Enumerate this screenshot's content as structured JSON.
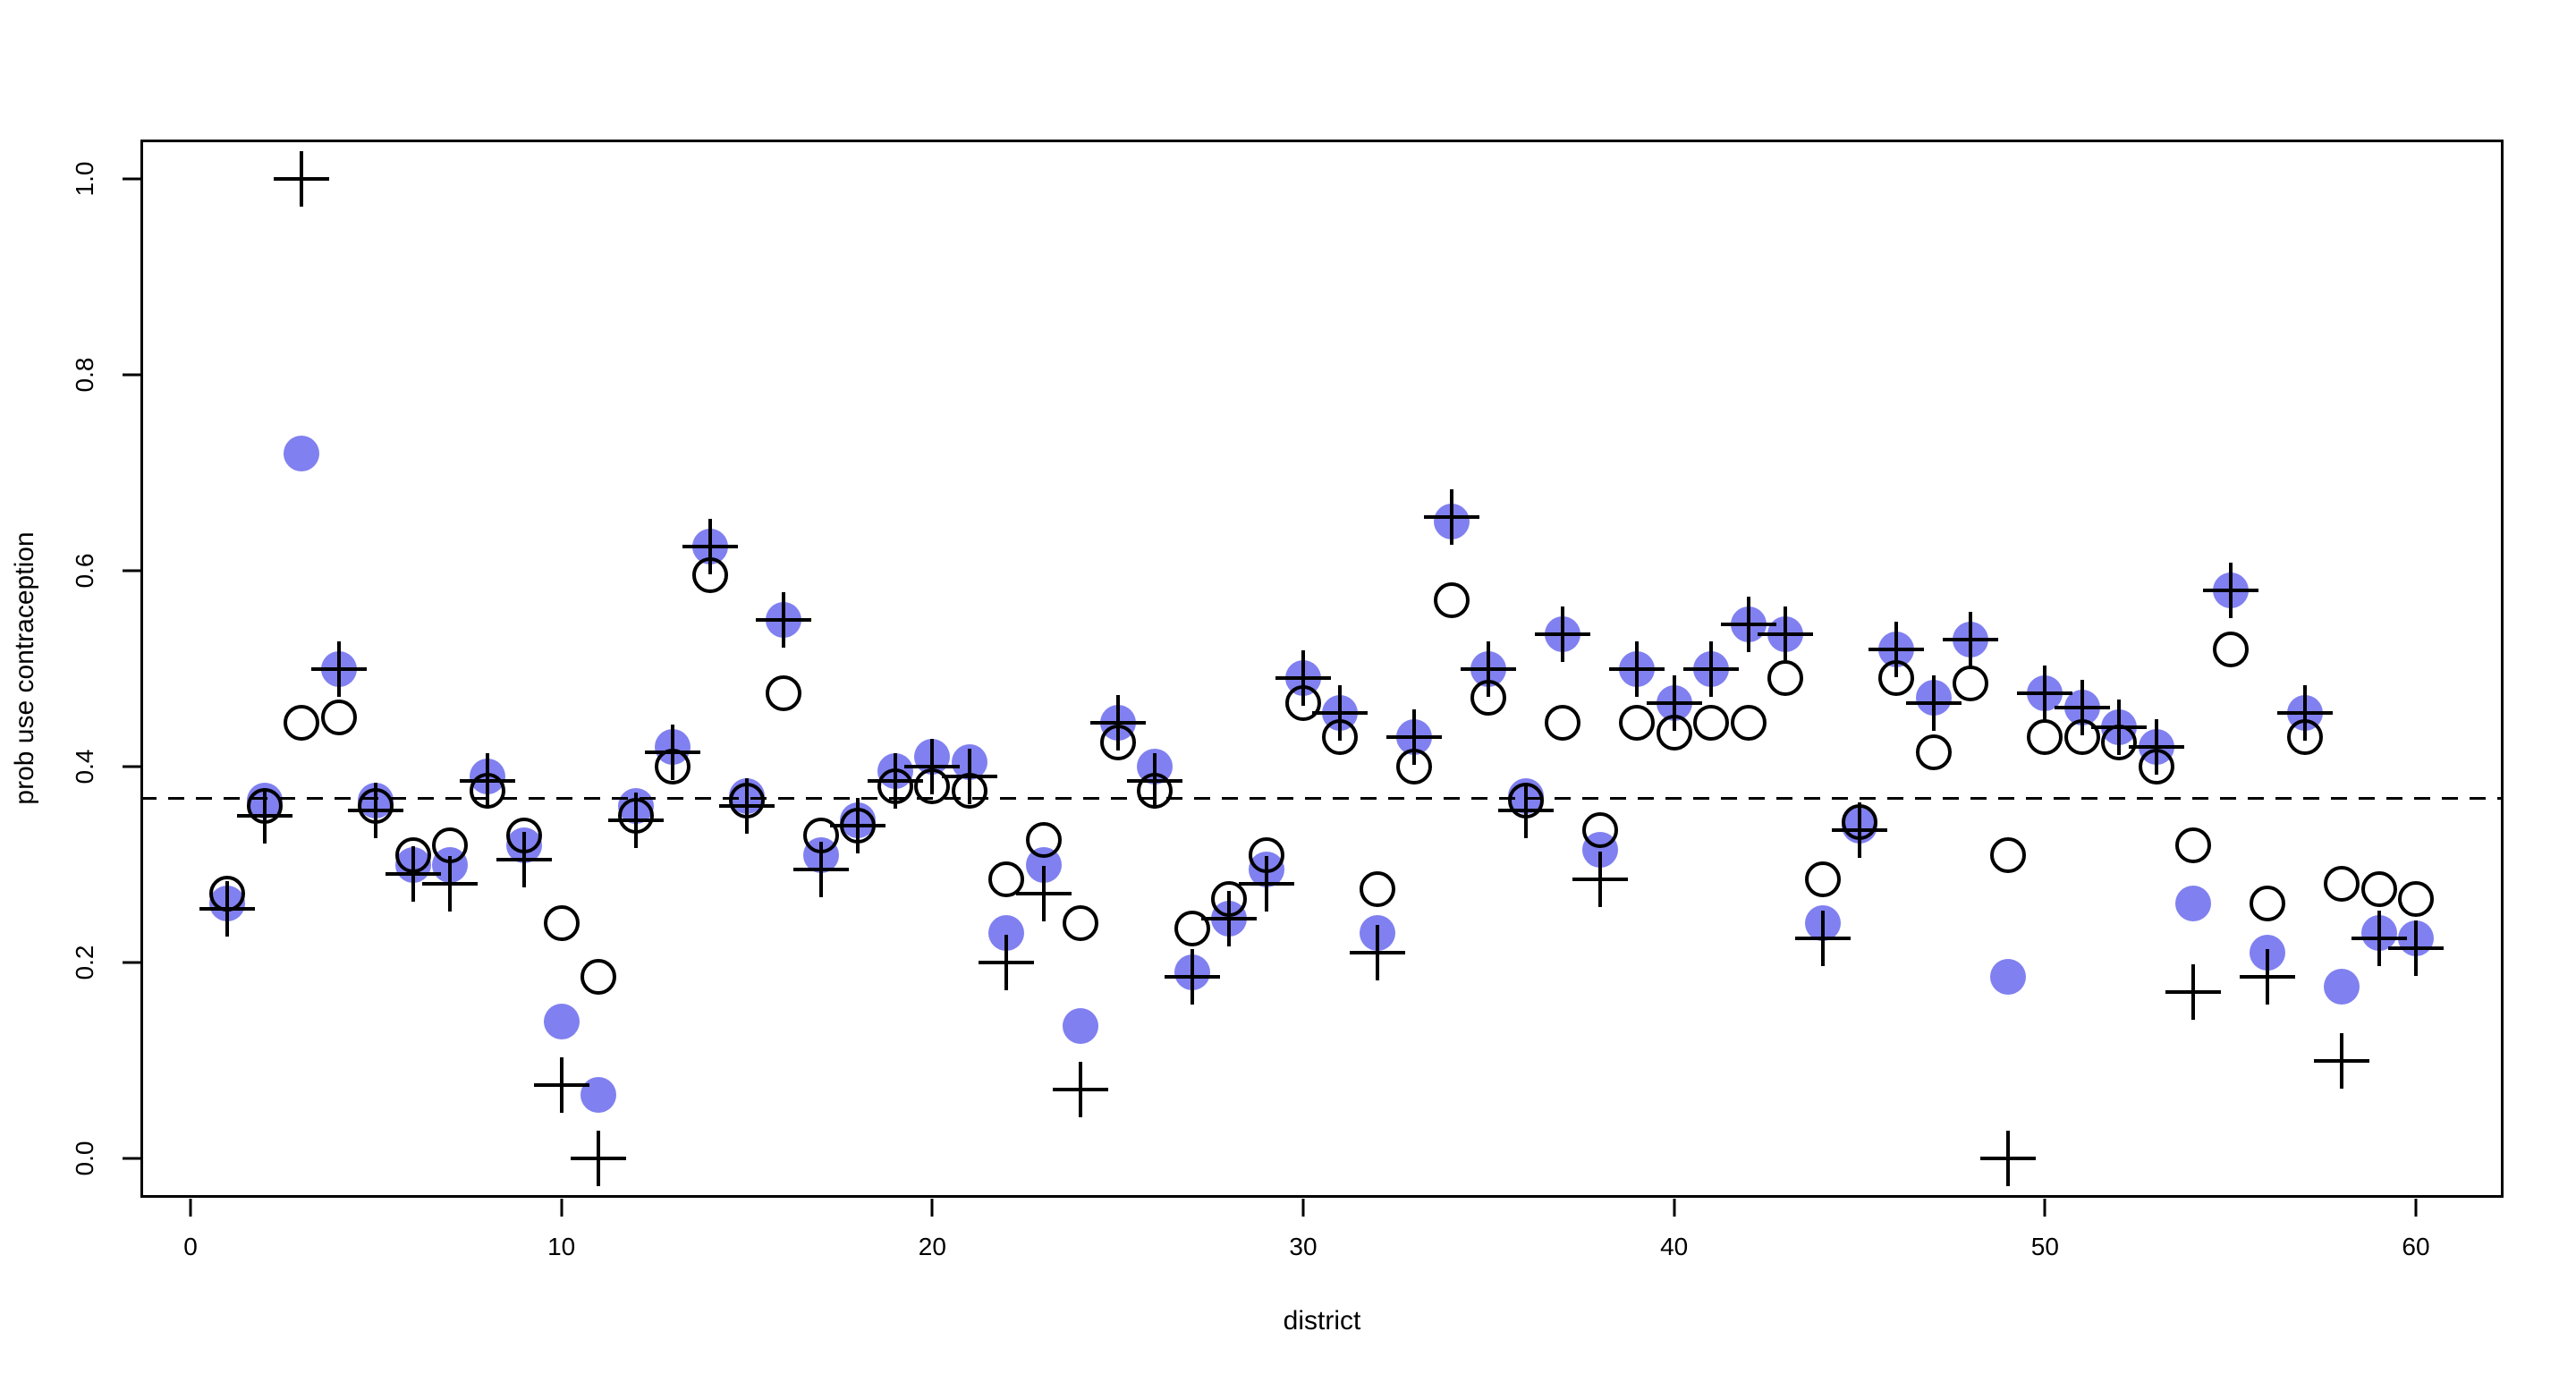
{
  "chart_data": {
    "type": "scatter",
    "title": "",
    "xlabel": "district",
    "ylabel": "prob use contraception",
    "xlim": [
      -1.35,
      62.36
    ],
    "ylim": [
      -0.04,
      1.04
    ],
    "x_ticks": [
      0,
      10,
      20,
      30,
      40,
      50,
      60
    ],
    "y_ticks": [
      "0.0",
      "0.2",
      "0.4",
      "0.6",
      "0.8",
      "1.0"
    ],
    "grid": false,
    "legend": "none",
    "reference_line": {
      "y": 0.368,
      "style": "dashed",
      "color": "#000000"
    },
    "x": [
      1,
      2,
      3,
      4,
      5,
      6,
      7,
      8,
      9,
      10,
      11,
      12,
      13,
      14,
      15,
      16,
      17,
      18,
      19,
      20,
      21,
      22,
      23,
      24,
      25,
      26,
      27,
      28,
      29,
      30,
      31,
      32,
      33,
      34,
      35,
      36,
      37,
      38,
      39,
      40,
      41,
      42,
      43,
      44,
      45,
      46,
      47,
      48,
      49,
      50,
      51,
      52,
      53,
      54,
      55,
      56,
      57,
      58,
      59,
      60
    ],
    "series": [
      {
        "name": "filled-circle-series",
        "marker": "filled-circle",
        "color": "#8080F0",
        "values": [
          0.26,
          0.365,
          0.72,
          0.5,
          0.365,
          0.3,
          0.3,
          0.39,
          0.32,
          0.14,
          0.065,
          0.36,
          0.42,
          0.625,
          0.37,
          0.55,
          0.31,
          0.345,
          0.395,
          0.41,
          0.405,
          0.23,
          0.3,
          0.135,
          0.445,
          0.4,
          0.19,
          0.245,
          0.295,
          0.49,
          0.455,
          0.23,
          0.43,
          0.65,
          0.5,
          0.37,
          0.535,
          0.315,
          0.5,
          0.465,
          0.5,
          0.545,
          0.535,
          0.24,
          0.34,
          0.52,
          0.47,
          0.53,
          0.185,
          0.475,
          0.46,
          0.44,
          0.42,
          0.26,
          0.58,
          0.21,
          0.455,
          0.175,
          0.23,
          0.225
        ]
      },
      {
        "name": "open-circle-series",
        "marker": "open-circle",
        "color": "#000000",
        "values": [
          0.27,
          0.36,
          0.445,
          0.45,
          0.36,
          0.31,
          0.32,
          0.375,
          0.33,
          0.24,
          0.185,
          0.35,
          0.4,
          0.595,
          0.365,
          0.475,
          0.33,
          0.34,
          0.38,
          0.38,
          0.375,
          0.285,
          0.325,
          0.24,
          0.425,
          0.375,
          0.235,
          0.265,
          0.31,
          0.465,
          0.43,
          0.275,
          0.4,
          0.57,
          0.47,
          0.365,
          0.445,
          0.335,
          0.445,
          0.435,
          0.445,
          0.445,
          0.49,
          0.285,
          0.343,
          0.49,
          0.415,
          0.485,
          0.31,
          0.43,
          0.43,
          0.425,
          0.4,
          0.32,
          0.52,
          0.26,
          0.43,
          0.28,
          0.275,
          0.265
        ]
      },
      {
        "name": "plus-series",
        "marker": "plus",
        "color": "#000000",
        "values": [
          0.255,
          0.35,
          1.0,
          0.5,
          0.355,
          0.29,
          0.28,
          0.385,
          0.305,
          0.075,
          0.0,
          0.345,
          0.415,
          0.625,
          0.36,
          0.55,
          0.295,
          0.34,
          0.385,
          0.4,
          0.39,
          0.2,
          0.27,
          0.07,
          0.445,
          0.385,
          0.185,
          0.245,
          0.28,
          0.49,
          0.455,
          0.21,
          0.43,
          0.655,
          0.5,
          0.355,
          0.535,
          0.285,
          0.5,
          0.465,
          0.5,
          0.545,
          0.535,
          0.225,
          0.335,
          0.52,
          0.465,
          0.53,
          0.0,
          0.475,
          0.46,
          0.44,
          0.42,
          0.17,
          0.58,
          0.185,
          0.455,
          0.1,
          0.225,
          0.215
        ]
      }
    ]
  }
}
